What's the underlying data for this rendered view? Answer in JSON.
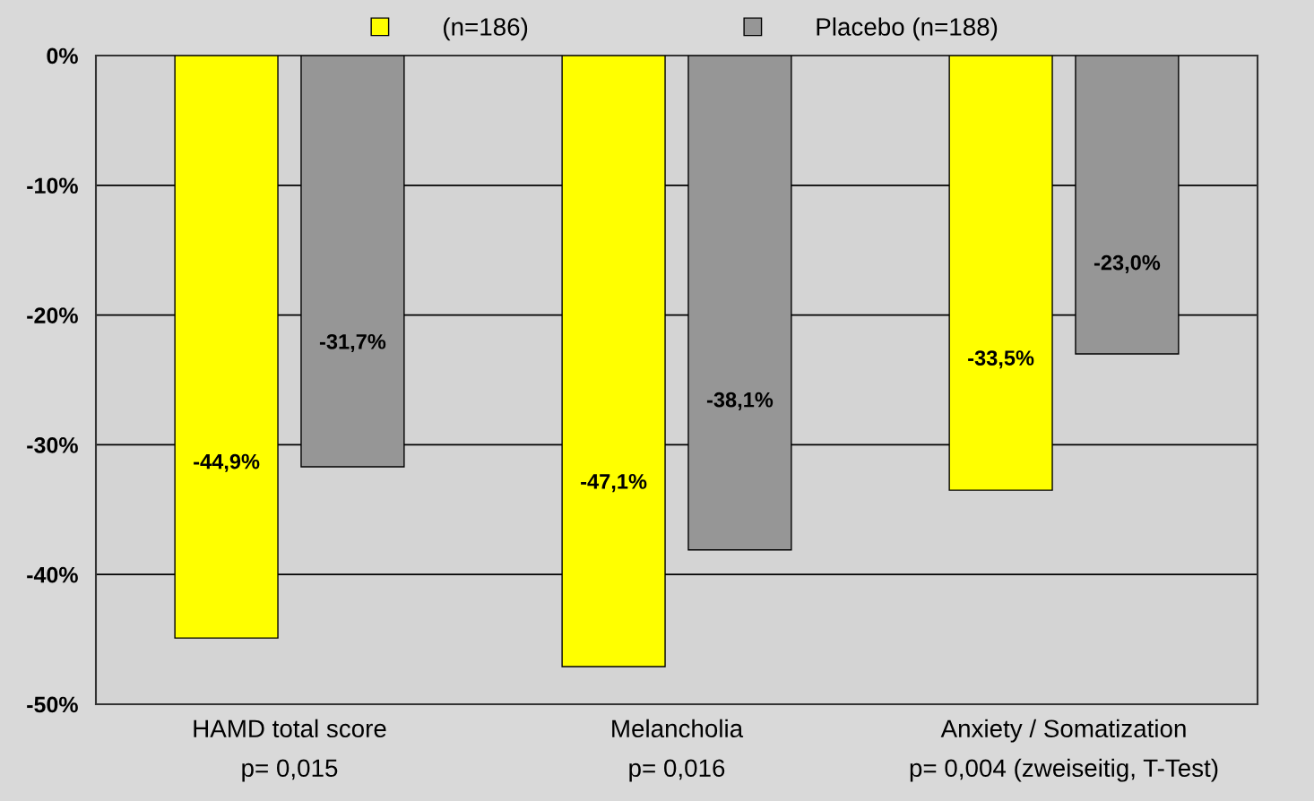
{
  "chart_data": {
    "type": "bar",
    "categories": [
      "HAMD total score\np= 0,015",
      "Melancholia\np= 0,016",
      "Anxiety / Somatization\np= 0,004 (zweiseitig, T-Test)"
    ],
    "series": [
      {
        "name": "(n=186)",
        "color": "#ffff00",
        "values": [
          -44.9,
          -47.1,
          -33.5
        ],
        "value_labels": [
          "-44,9%",
          "-47,1%",
          "-33,5%"
        ]
      },
      {
        "name": "Placebo (n=188)",
        "color": "#969696",
        "values": [
          -31.7,
          -38.1,
          -23.0
        ],
        "value_labels": [
          "-31,7%",
          "-38,1%",
          "-23,0%"
        ]
      }
    ],
    "ylim": [
      -50,
      0
    ],
    "yticks": [
      {
        "value": 0,
        "label": "0%"
      },
      {
        "value": -10,
        "label": "-10%"
      },
      {
        "value": -20,
        "label": "-20%"
      },
      {
        "value": -30,
        "label": "-30%"
      },
      {
        "value": -40,
        "label": "-40%"
      },
      {
        "value": -50,
        "label": "-50%"
      }
    ],
    "grid": "y",
    "legend": "top"
  }
}
